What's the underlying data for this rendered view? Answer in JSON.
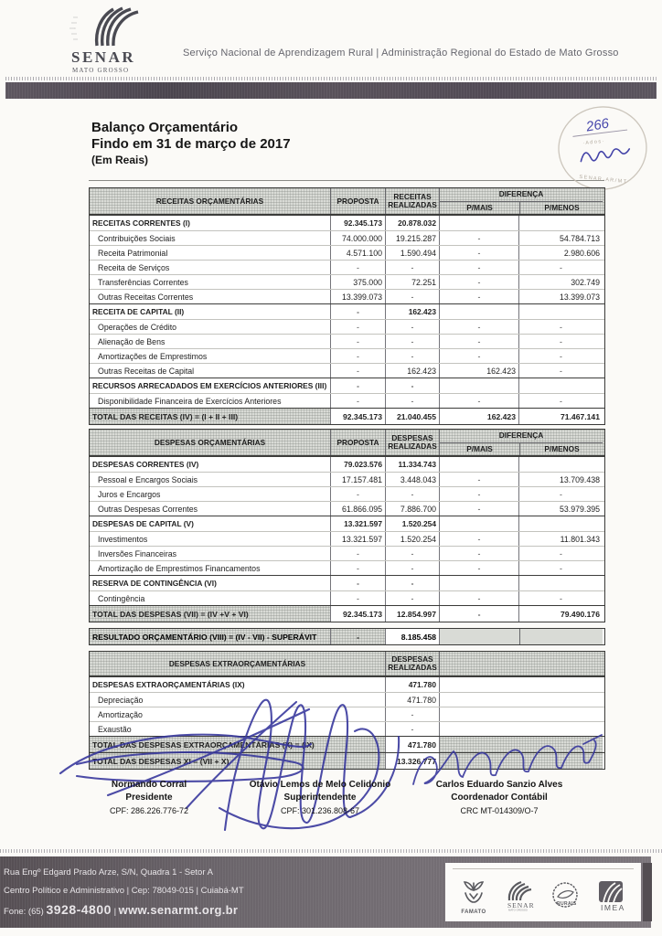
{
  "header": {
    "brand_name": "SENAR",
    "brand_region": "MATO GROSSO",
    "tagline": "Serviço Nacional de Aprendizagem Rural | Administração Regional do Estado de Mato Grosso"
  },
  "stamp": {
    "number": "266",
    "handwritten_name": "Lima"
  },
  "doc": {
    "title": "Balanço Orçamentário",
    "subtitle": "Findo em 31 de março de 2017",
    "unit": "(Em Reais)"
  },
  "receitas": {
    "header": {
      "col_label": "RECEITAS ORÇAMENTÁRIAS",
      "col_proposta": "PROPOSTA",
      "col_realizadas": "RECEITAS REALIZADAS",
      "col_diferenca": "DIFERENÇA",
      "col_pmais": "P/MAIS",
      "col_pmenos": "P/MENOS"
    },
    "rows": [
      {
        "type": "section",
        "label": "RECEITAS CORRENTES (I)",
        "cells": [
          "92.345.173",
          "20.878.032",
          "",
          ""
        ]
      },
      {
        "type": "item",
        "label": "Contribuições Sociais",
        "cells": [
          "74.000.000",
          "19.215.287",
          "-",
          "54.784.713"
        ]
      },
      {
        "type": "item",
        "label": "Receita Patrimonial",
        "cells": [
          "4.571.100",
          "1.590.494",
          "-",
          "2.980.606"
        ]
      },
      {
        "type": "item",
        "label": "Receita de Serviços",
        "cells": [
          "-",
          "-",
          "-",
          "-"
        ]
      },
      {
        "type": "item",
        "label": "Transferências Correntes",
        "cells": [
          "375.000",
          "72.251",
          "-",
          "302.749"
        ]
      },
      {
        "type": "item",
        "label": "Outras Receitas Correntes",
        "cells": [
          "13.399.073",
          "-",
          "-",
          "13.399.073"
        ]
      },
      {
        "type": "section",
        "label": "RECEITA DE CAPITAL (II)",
        "cells": [
          "-",
          "162.423",
          "",
          ""
        ]
      },
      {
        "type": "item",
        "label": "Operações de Crédito",
        "cells": [
          "-",
          "-",
          "-",
          "-"
        ]
      },
      {
        "type": "item",
        "label": "Alienação de Bens",
        "cells": [
          "-",
          "-",
          "-",
          "-"
        ]
      },
      {
        "type": "item",
        "label": "Amortizações de Emprestimos",
        "cells": [
          "-",
          "-",
          "-",
          "-"
        ]
      },
      {
        "type": "item",
        "label": "Outras Receitas de Capital",
        "cells": [
          "-",
          "162.423",
          "162.423",
          "-"
        ]
      },
      {
        "type": "section",
        "label": "RECURSOS ARRECADADOS EM EXERCÍCIOS ANTERIORES (III)",
        "cells": [
          "-",
          "-",
          "",
          ""
        ]
      },
      {
        "type": "item",
        "label": "Disponibilidade Financeira de Exercícios Anteriores",
        "cells": [
          "-",
          "-",
          "-",
          "-"
        ]
      },
      {
        "type": "total",
        "label": "TOTAL DAS RECEITAS (IV) = (I + II + III)",
        "cells": [
          "92.345.173",
          "21.040.455",
          "162.423",
          "71.467.141"
        ]
      }
    ]
  },
  "despesas": {
    "header": {
      "col_label": "DESPESAS ORÇAMENTÁRIAS",
      "col_proposta": "PROPOSTA",
      "col_realizadas": "DESPESAS REALIZADAS",
      "col_diferenca": "DIFERENÇA",
      "col_pmais": "P/MAIS",
      "col_pmenos": "P/MENOS"
    },
    "rows": [
      {
        "type": "section",
        "label": "DESPESAS CORRENTES (IV)",
        "cells": [
          "79.023.576",
          "11.334.743",
          "",
          ""
        ]
      },
      {
        "type": "item",
        "label": "Pessoal e Encargos Sociais",
        "cells": [
          "17.157.481",
          "3.448.043",
          "-",
          "13.709.438"
        ]
      },
      {
        "type": "item",
        "label": "Juros e Encargos",
        "cells": [
          "-",
          "-",
          "-",
          "-"
        ]
      },
      {
        "type": "item",
        "label": "Outras Despesas Correntes",
        "cells": [
          "61.866.095",
          "7.886.700",
          "-",
          "53.979.395"
        ]
      },
      {
        "type": "section",
        "label": "DESPESAS DE CAPITAL (V)",
        "cells": [
          "13.321.597",
          "1.520.254",
          "",
          ""
        ]
      },
      {
        "type": "item",
        "label": "Investimentos",
        "cells": [
          "13.321.597",
          "1.520.254",
          "-",
          "11.801.343"
        ]
      },
      {
        "type": "item",
        "label": "Inversões Financeiras",
        "cells": [
          "-",
          "-",
          "-",
          "-"
        ]
      },
      {
        "type": "item",
        "label": "Amortização de Emprestimos Financamentos",
        "cells": [
          "-",
          "-",
          "-",
          "-"
        ]
      },
      {
        "type": "section",
        "label": "RESERVA DE CONTINGÊNCIA (VI)",
        "cells": [
          "-",
          "-",
          "",
          ""
        ]
      },
      {
        "type": "item",
        "label": "Contingência",
        "cells": [
          "-",
          "-",
          "-",
          "-"
        ]
      },
      {
        "type": "total",
        "label": "TOTAL DAS DESPESAS (VII) = (IV +V + VI)",
        "cells": [
          "92.345.173",
          "12.854.997",
          "-",
          "79.490.176"
        ]
      }
    ]
  },
  "resultado": {
    "label": "RESULTADO ORÇAMENTÁRIO (VIII) = (IV - VII)  - SUPERÁVIT",
    "proposta": "-",
    "realizadas": "8.185.458"
  },
  "extra": {
    "header": {
      "col_label": "DESPESAS EXTRAORÇAMENTÁRIAS",
      "col_realizadas": "DESPESAS REALIZADAS"
    },
    "rows": [
      {
        "type": "section",
        "label": "DESPESAS EXTRAORÇAMENTÁRIAS (IX)",
        "cells": [
          "471.780",
          ""
        ]
      },
      {
        "type": "item",
        "label": "Depreciação",
        "cells": [
          "471.780",
          ""
        ]
      },
      {
        "type": "item",
        "label": "Amortização",
        "cells": [
          "-",
          ""
        ]
      },
      {
        "type": "item",
        "label": "Exaustão",
        "cells": [
          "-",
          ""
        ]
      },
      {
        "type": "total",
        "label": "TOTAL DAS DESPESAS EXTRAORÇAMENTÁRIAS (X) = (IX)",
        "cells": [
          "471.780",
          ""
        ]
      },
      {
        "type": "total",
        "label": "TOTAL DAS DESPESAS XI = (VII + X)",
        "cells": [
          "13.326.777",
          ""
        ]
      }
    ]
  },
  "signatories": [
    {
      "name": "Normando Corral",
      "role": "Presidente",
      "id": "CPF: 286.226.776-72"
    },
    {
      "name": "Otávio Lemos de Melo Celidonio",
      "role": "Superintendente",
      "id": "CPF: 301.236.808-67"
    },
    {
      "name": "Carlos Eduardo Sanzio Alves",
      "role": "Coordenador Contábil",
      "id": "CRC MT-014309/O-7"
    }
  ],
  "footer": {
    "address1": "Rua Engº Edgard Prado Arze, S/N, Quadra 1 - Setor A",
    "address2": "Centro Político e Administrativo | Cep: 78049-015 | Cuiabá-MT",
    "phone_label": "Fone: (65)",
    "phone": "3928-4800",
    "separator": "|",
    "website": "www.senarmt.org.br",
    "logos": {
      "l1": "FAMATO",
      "l2": "SENAR",
      "l3": "RURAIS",
      "l4": "IMEA"
    }
  },
  "colors": {
    "signature_ink": "#34349b",
    "stamp_ink": "#4747ac",
    "band": "#574f56",
    "header_texture": "#d9dbd6"
  }
}
